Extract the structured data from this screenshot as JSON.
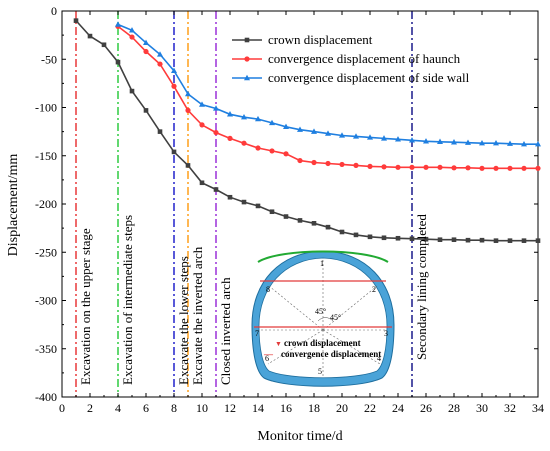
{
  "chart_data": {
    "type": "line",
    "xlabel": "Monitor time/d",
    "ylabel": "Displacement/mm",
    "xlim": [
      0,
      34
    ],
    "ylim": [
      -400,
      0
    ],
    "xticks": [
      0,
      2,
      4,
      6,
      8,
      10,
      12,
      14,
      16,
      18,
      20,
      22,
      24,
      26,
      28,
      30,
      32,
      34
    ],
    "yticks": [
      0,
      -50,
      -100,
      -150,
      -200,
      -250,
      -300,
      -350,
      -400
    ],
    "legend_position": "top-right",
    "series": [
      {
        "name": "crown displacement",
        "color": "#404040",
        "marker": "square",
        "points": [
          [
            1,
            -10
          ],
          [
            2,
            -26
          ],
          [
            3,
            -35
          ],
          [
            4,
            -53
          ],
          [
            5,
            -83
          ],
          [
            6,
            -103
          ],
          [
            7,
            -125
          ],
          [
            8,
            -146
          ],
          [
            9,
            -160
          ],
          [
            10,
            -178
          ],
          [
            11,
            -185
          ],
          [
            12,
            -193
          ],
          [
            13,
            -198
          ],
          [
            14,
            -202
          ],
          [
            15,
            -208
          ],
          [
            16,
            -213
          ],
          [
            17,
            -217
          ],
          [
            18,
            -220
          ],
          [
            19,
            -224
          ],
          [
            20,
            -229
          ],
          [
            21,
            -232
          ],
          [
            22,
            -234
          ],
          [
            23,
            -235
          ],
          [
            24,
            -235.5
          ],
          [
            25,
            -236
          ],
          [
            26,
            -236.5
          ],
          [
            27,
            -237
          ],
          [
            28,
            -237
          ],
          [
            29,
            -237.5
          ],
          [
            30,
            -237.5
          ],
          [
            31,
            -238
          ],
          [
            32,
            -238
          ],
          [
            33,
            -238
          ],
          [
            34,
            -238
          ]
        ]
      },
      {
        "name": "convergence displacement of haunch",
        "color": "#ff3b3b",
        "marker": "circle",
        "points": [
          [
            4,
            -16
          ],
          [
            5,
            -27
          ],
          [
            6,
            -42
          ],
          [
            7,
            -55
          ],
          [
            8,
            -78
          ],
          [
            9,
            -103
          ],
          [
            10,
            -118
          ],
          [
            11,
            -126
          ],
          [
            12,
            -132
          ],
          [
            13,
            -137
          ],
          [
            14,
            -142
          ],
          [
            15,
            -145
          ],
          [
            16,
            -148
          ],
          [
            17,
            -155
          ],
          [
            18,
            -157
          ],
          [
            19,
            -158
          ],
          [
            20,
            -159
          ],
          [
            21,
            -160
          ],
          [
            22,
            -161
          ],
          [
            23,
            -161.5
          ],
          [
            24,
            -162
          ],
          [
            25,
            -162
          ],
          [
            26,
            -162
          ],
          [
            27,
            -162
          ],
          [
            28,
            -162.5
          ],
          [
            29,
            -162.5
          ],
          [
            30,
            -163
          ],
          [
            31,
            -163
          ],
          [
            32,
            -163
          ],
          [
            33,
            -163
          ],
          [
            34,
            -163
          ]
        ]
      },
      {
        "name": "convergence displacement of side wall",
        "color": "#1f7fe0",
        "marker": "triangle",
        "points": [
          [
            4,
            -14
          ],
          [
            5,
            -20
          ],
          [
            6,
            -33
          ],
          [
            7,
            -45
          ],
          [
            8,
            -62
          ],
          [
            9,
            -86
          ],
          [
            10,
            -97
          ],
          [
            11,
            -101
          ],
          [
            12,
            -107
          ],
          [
            13,
            -110
          ],
          [
            14,
            -112
          ],
          [
            15,
            -116
          ],
          [
            16,
            -120
          ],
          [
            17,
            -123
          ],
          [
            18,
            -125
          ],
          [
            19,
            -127
          ],
          [
            20,
            -129
          ],
          [
            21,
            -130
          ],
          [
            22,
            -131
          ],
          [
            23,
            -132
          ],
          [
            24,
            -133
          ],
          [
            25,
            -134
          ],
          [
            26,
            -135
          ],
          [
            27,
            -135.5
          ],
          [
            28,
            -136
          ],
          [
            29,
            -136.5
          ],
          [
            30,
            -137
          ],
          [
            31,
            -137
          ],
          [
            32,
            -137.5
          ],
          [
            33,
            -138
          ],
          [
            34,
            -138
          ]
        ]
      }
    ],
    "stage_lines": [
      {
        "x": 1,
        "color": "#e8393a",
        "label": "Excavation on the upper stage"
      },
      {
        "x": 4,
        "color": "#2ecc40",
        "label": "Excavation of intermediate steps"
      },
      {
        "x": 8,
        "color": "#2222cc",
        "label": "Excavate the lower steps"
      },
      {
        "x": 9,
        "color": "#ff9f1a",
        "label": "Excavate the inverted arch"
      },
      {
        "x": 11,
        "color": "#9b30d9",
        "label": "Closed inverted arch"
      },
      {
        "x": 25,
        "color": "#1a1a8c",
        "label": "Secondary lining completed"
      }
    ],
    "inset": {
      "point_labels": [
        "1",
        "2",
        "3",
        "4",
        "5",
        "6",
        "7",
        "8"
      ],
      "angle_labels": [
        "45°",
        "45°"
      ],
      "legend": [
        {
          "symbol": "▼",
          "label": "crown displacement"
        },
        {
          "symbol": "—",
          "label": "convergence displacement"
        }
      ]
    }
  }
}
